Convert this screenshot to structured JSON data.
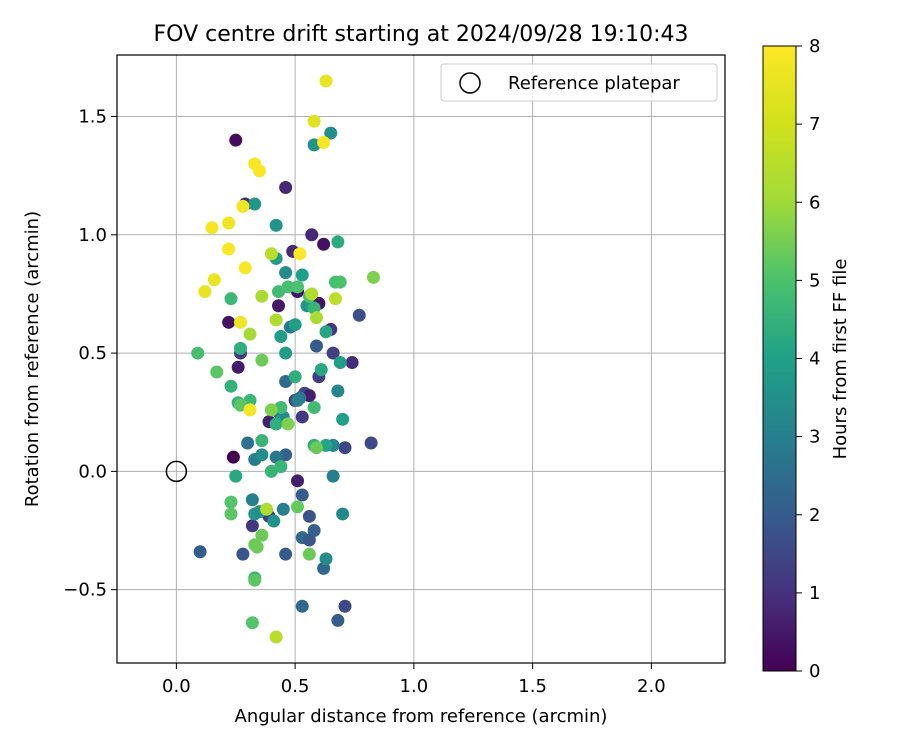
{
  "chart_data": {
    "type": "scatter",
    "title": "FOV centre drift starting at 2024/09/28 19:10:43",
    "xlabel": "Angular distance from reference (arcmin)",
    "ylabel": "Rotation from reference (arcmin)",
    "xlim": [
      -0.25,
      2.31
    ],
    "ylim": [
      -0.81,
      1.76
    ],
    "xticks": [
      0.0,
      0.5,
      1.0,
      1.5,
      2.0
    ],
    "xtick_labels": [
      "0.0",
      "0.5",
      "1.0",
      "1.5",
      "2.0"
    ],
    "yticks": [
      -0.5,
      0.0,
      0.5,
      1.0,
      1.5
    ],
    "ytick_labels": [
      "−0.5",
      "0.0",
      "0.5",
      "1.0",
      "1.5"
    ],
    "grid": true,
    "legend": {
      "position": "top-right",
      "entries": [
        "Reference platepar"
      ]
    },
    "reference_point": {
      "x": 0.0,
      "y": 0.0,
      "label": "Reference platepar",
      "marker": "open-circle"
    },
    "colorbar": {
      "label": "Hours from first FF file",
      "range": [
        0,
        8
      ],
      "ticks": [
        0,
        1,
        2,
        3,
        4,
        5,
        6,
        7,
        8
      ],
      "tick_labels": [
        "0",
        "1",
        "2",
        "3",
        "4",
        "5",
        "6",
        "7",
        "8"
      ],
      "colormap": "viridis"
    },
    "points": [
      {
        "x": 0.25,
        "y": 1.4,
        "c": 0.2
      },
      {
        "x": 0.46,
        "y": 1.2,
        "c": 0.8
      },
      {
        "x": 0.29,
        "y": 1.13,
        "c": 0.9
      },
      {
        "x": 0.57,
        "y": 1.0,
        "c": 0.8
      },
      {
        "x": 0.62,
        "y": 0.96,
        "c": 0.3
      },
      {
        "x": 0.49,
        "y": 0.93,
        "c": 0.8
      },
      {
        "x": 0.43,
        "y": 0.7,
        "c": 0.5
      },
      {
        "x": 0.51,
        "y": 0.76,
        "c": 0.4
      },
      {
        "x": 0.22,
        "y": 0.63,
        "c": 0.3
      },
      {
        "x": 0.27,
        "y": 0.5,
        "c": 1.2
      },
      {
        "x": 0.6,
        "y": 0.71,
        "c": 0.3
      },
      {
        "x": 0.65,
        "y": 0.6,
        "c": 1.1
      },
      {
        "x": 0.74,
        "y": 0.46,
        "c": 0.9
      },
      {
        "x": 0.77,
        "y": 0.66,
        "c": 1.7
      },
      {
        "x": 0.66,
        "y": 0.5,
        "c": 1.3
      },
      {
        "x": 0.59,
        "y": 0.53,
        "c": 2.0
      },
      {
        "x": 0.26,
        "y": 0.44,
        "c": 0.5
      },
      {
        "x": 0.39,
        "y": 0.21,
        "c": 0.6
      },
      {
        "x": 0.5,
        "y": 0.3,
        "c": 1.0
      },
      {
        "x": 0.54,
        "y": 0.33,
        "c": 1.6
      },
      {
        "x": 0.56,
        "y": 0.32,
        "c": 0.6
      },
      {
        "x": 0.6,
        "y": 0.4,
        "c": 1.3
      },
      {
        "x": 0.53,
        "y": 0.23,
        "c": 1.2
      },
      {
        "x": 0.82,
        "y": 0.12,
        "c": 1.6
      },
      {
        "x": 0.71,
        "y": 0.1,
        "c": 1.5
      },
      {
        "x": 0.24,
        "y": 0.06,
        "c": 0.0
      },
      {
        "x": 0.51,
        "y": -0.04,
        "c": 0.6
      },
      {
        "x": 0.53,
        "y": -0.1,
        "c": 2.0
      },
      {
        "x": 0.56,
        "y": -0.19,
        "c": 1.8
      },
      {
        "x": 0.58,
        "y": -0.25,
        "c": 2.1
      },
      {
        "x": 0.53,
        "y": -0.28,
        "c": 2.4
      },
      {
        "x": 0.56,
        "y": -0.29,
        "c": 1.9
      },
      {
        "x": 0.39,
        "y": -0.19,
        "c": 1.3
      },
      {
        "x": 0.32,
        "y": -0.23,
        "c": 1.1
      },
      {
        "x": 0.1,
        "y": -0.34,
        "c": 2.0
      },
      {
        "x": 0.28,
        "y": -0.35,
        "c": 1.8
      },
      {
        "x": 0.46,
        "y": -0.35,
        "c": 2.0
      },
      {
        "x": 0.62,
        "y": -0.41,
        "c": 2.3
      },
      {
        "x": 0.71,
        "y": -0.57,
        "c": 1.6
      },
      {
        "x": 0.68,
        "y": -0.63,
        "c": 2.0
      },
      {
        "x": 0.53,
        "y": -0.57,
        "c": 2.3
      },
      {
        "x": 0.3,
        "y": 0.12,
        "c": 2.6
      },
      {
        "x": 0.33,
        "y": 0.05,
        "c": 3.0
      },
      {
        "x": 0.46,
        "y": 0.07,
        "c": 2.2
      },
      {
        "x": 0.42,
        "y": 0.06,
        "c": 2.8
      },
      {
        "x": 0.46,
        "y": 0.38,
        "c": 2.4
      },
      {
        "x": 0.52,
        "y": 0.31,
        "c": 2.8
      },
      {
        "x": 0.66,
        "y": 0.11,
        "c": 3.2
      },
      {
        "x": 0.68,
        "y": 0.34,
        "c": 3.2
      },
      {
        "x": 0.66,
        "y": -0.02,
        "c": 3.0
      },
      {
        "x": 0.7,
        "y": -0.18,
        "c": 3.3
      },
      {
        "x": 0.63,
        "y": -0.37,
        "c": 3.4
      },
      {
        "x": 0.43,
        "y": 0.25,
        "c": 3.0
      },
      {
        "x": 0.36,
        "y": 0.07,
        "c": 3.4
      },
      {
        "x": 0.45,
        "y": 0.23,
        "c": 3.4
      },
      {
        "x": 0.48,
        "y": 0.61,
        "c": 2.8
      },
      {
        "x": 0.51,
        "y": 0.3,
        "c": 3.0
      },
      {
        "x": 0.32,
        "y": -0.12,
        "c": 3.0
      },
      {
        "x": 0.33,
        "y": -0.18,
        "c": 3.7
      },
      {
        "x": 0.35,
        "y": -0.17,
        "c": 3.5
      },
      {
        "x": 0.41,
        "y": -0.21,
        "c": 3.6
      },
      {
        "x": 0.45,
        "y": -0.16,
        "c": 3.0
      },
      {
        "x": 0.46,
        "y": 0.84,
        "c": 3.4
      },
      {
        "x": 0.42,
        "y": 0.9,
        "c": 3.8
      },
      {
        "x": 0.42,
        "y": 1.04,
        "c": 3.6
      },
      {
        "x": 0.33,
        "y": 1.13,
        "c": 3.7
      },
      {
        "x": 0.58,
        "y": 1.38,
        "c": 3.6
      },
      {
        "x": 0.65,
        "y": 1.43,
        "c": 3.5
      },
      {
        "x": 0.68,
        "y": 0.97,
        "c": 4.3
      },
      {
        "x": 0.53,
        "y": 0.83,
        "c": 4.0
      },
      {
        "x": 0.55,
        "y": 0.7,
        "c": 3.7
      },
      {
        "x": 0.63,
        "y": 0.59,
        "c": 4.2
      },
      {
        "x": 0.5,
        "y": 0.62,
        "c": 3.9
      },
      {
        "x": 0.44,
        "y": 0.57,
        "c": 3.9
      },
      {
        "x": 0.46,
        "y": 0.5,
        "c": 3.9
      },
      {
        "x": 0.61,
        "y": 0.43,
        "c": 4.2
      },
      {
        "x": 0.69,
        "y": 0.46,
        "c": 3.9
      },
      {
        "x": 0.7,
        "y": 0.22,
        "c": 3.9
      },
      {
        "x": 0.63,
        "y": 0.11,
        "c": 4.1
      },
      {
        "x": 0.58,
        "y": 0.11,
        "c": 4.4
      },
      {
        "x": 0.27,
        "y": 0.52,
        "c": 4.4
      },
      {
        "x": 0.23,
        "y": 0.36,
        "c": 4.5
      },
      {
        "x": 0.26,
        "y": 0.29,
        "c": 4.6
      },
      {
        "x": 0.31,
        "y": 0.3,
        "c": 4.7
      },
      {
        "x": 0.25,
        "y": -0.02,
        "c": 4.2
      },
      {
        "x": 0.4,
        "y": 0.0,
        "c": 4.6
      },
      {
        "x": 0.44,
        "y": 0.02,
        "c": 4.6
      },
      {
        "x": 0.36,
        "y": 0.13,
        "c": 4.6
      },
      {
        "x": 0.42,
        "y": 0.2,
        "c": 4.4
      },
      {
        "x": 0.44,
        "y": 0.27,
        "c": 4.8
      },
      {
        "x": 0.5,
        "y": 0.4,
        "c": 4.4
      },
      {
        "x": 0.58,
        "y": 0.27,
        "c": 4.8
      },
      {
        "x": 0.23,
        "y": 0.73,
        "c": 4.7
      },
      {
        "x": 0.43,
        "y": 0.76,
        "c": 4.8
      },
      {
        "x": 0.47,
        "y": 0.78,
        "c": 4.9
      },
      {
        "x": 0.51,
        "y": 0.78,
        "c": 5.0
      },
      {
        "x": 0.56,
        "y": 0.74,
        "c": 5.0
      },
      {
        "x": 0.58,
        "y": 0.69,
        "c": 4.6
      },
      {
        "x": 0.67,
        "y": 0.8,
        "c": 4.9
      },
      {
        "x": 0.69,
        "y": 0.8,
        "c": 5.0
      },
      {
        "x": 0.09,
        "y": 0.5,
        "c": 4.9
      },
      {
        "x": 0.17,
        "y": 0.42,
        "c": 5.2
      },
      {
        "x": 0.36,
        "y": 0.47,
        "c": 5.4
      },
      {
        "x": 0.27,
        "y": 0.28,
        "c": 5.2
      },
      {
        "x": 0.4,
        "y": 0.26,
        "c": 5.6
      },
      {
        "x": 0.47,
        "y": 0.2,
        "c": 5.6
      },
      {
        "x": 0.59,
        "y": 0.1,
        "c": 5.4
      },
      {
        "x": 0.23,
        "y": -0.13,
        "c": 5.1
      },
      {
        "x": 0.23,
        "y": -0.18,
        "c": 5.2
      },
      {
        "x": 0.51,
        "y": -0.15,
        "c": 5.3
      },
      {
        "x": 0.34,
        "y": -0.32,
        "c": 5.4
      },
      {
        "x": 0.33,
        "y": -0.31,
        "c": 5.4
      },
      {
        "x": 0.36,
        "y": -0.27,
        "c": 5.4
      },
      {
        "x": 0.56,
        "y": -0.35,
        "c": 5.4
      },
      {
        "x": 0.33,
        "y": -0.45,
        "c": 4.7
      },
      {
        "x": 0.33,
        "y": -0.46,
        "c": 5.2
      },
      {
        "x": 0.32,
        "y": -0.64,
        "c": 5.1
      },
      {
        "x": 0.83,
        "y": 0.82,
        "c": 5.6
      },
      {
        "x": 0.36,
        "y": 0.74,
        "c": 6.2
      },
      {
        "x": 0.31,
        "y": 0.58,
        "c": 6.1
      },
      {
        "x": 0.42,
        "y": 0.64,
        "c": 6.3
      },
      {
        "x": 0.59,
        "y": 0.65,
        "c": 6.2
      },
      {
        "x": 0.67,
        "y": 0.73,
        "c": 6.6
      },
      {
        "x": 0.57,
        "y": 0.75,
        "c": 6.4
      },
      {
        "x": 0.4,
        "y": 0.92,
        "c": 6.5
      },
      {
        "x": 0.38,
        "y": -0.16,
        "c": 6.3
      },
      {
        "x": 0.42,
        "y": -0.7,
        "c": 6.5
      },
      {
        "x": 0.31,
        "y": 0.26,
        "c": 7.8
      },
      {
        "x": 0.27,
        "y": 0.63,
        "c": 7.7
      },
      {
        "x": 0.12,
        "y": 0.76,
        "c": 7.5
      },
      {
        "x": 0.16,
        "y": 0.81,
        "c": 7.6
      },
      {
        "x": 0.29,
        "y": 0.86,
        "c": 7.9
      },
      {
        "x": 0.22,
        "y": 0.94,
        "c": 7.9
      },
      {
        "x": 0.15,
        "y": 1.03,
        "c": 7.8
      },
      {
        "x": 0.22,
        "y": 1.05,
        "c": 7.7
      },
      {
        "x": 0.28,
        "y": 1.12,
        "c": 7.8
      },
      {
        "x": 0.35,
        "y": 1.27,
        "c": 7.9
      },
      {
        "x": 0.33,
        "y": 1.3,
        "c": 7.9
      },
      {
        "x": 0.52,
        "y": 0.92,
        "c": 7.9
      },
      {
        "x": 0.62,
        "y": 1.39,
        "c": 7.9
      },
      {
        "x": 0.58,
        "y": 1.48,
        "c": 7.4
      },
      {
        "x": 0.63,
        "y": 1.65,
        "c": 7.5
      }
    ]
  }
}
